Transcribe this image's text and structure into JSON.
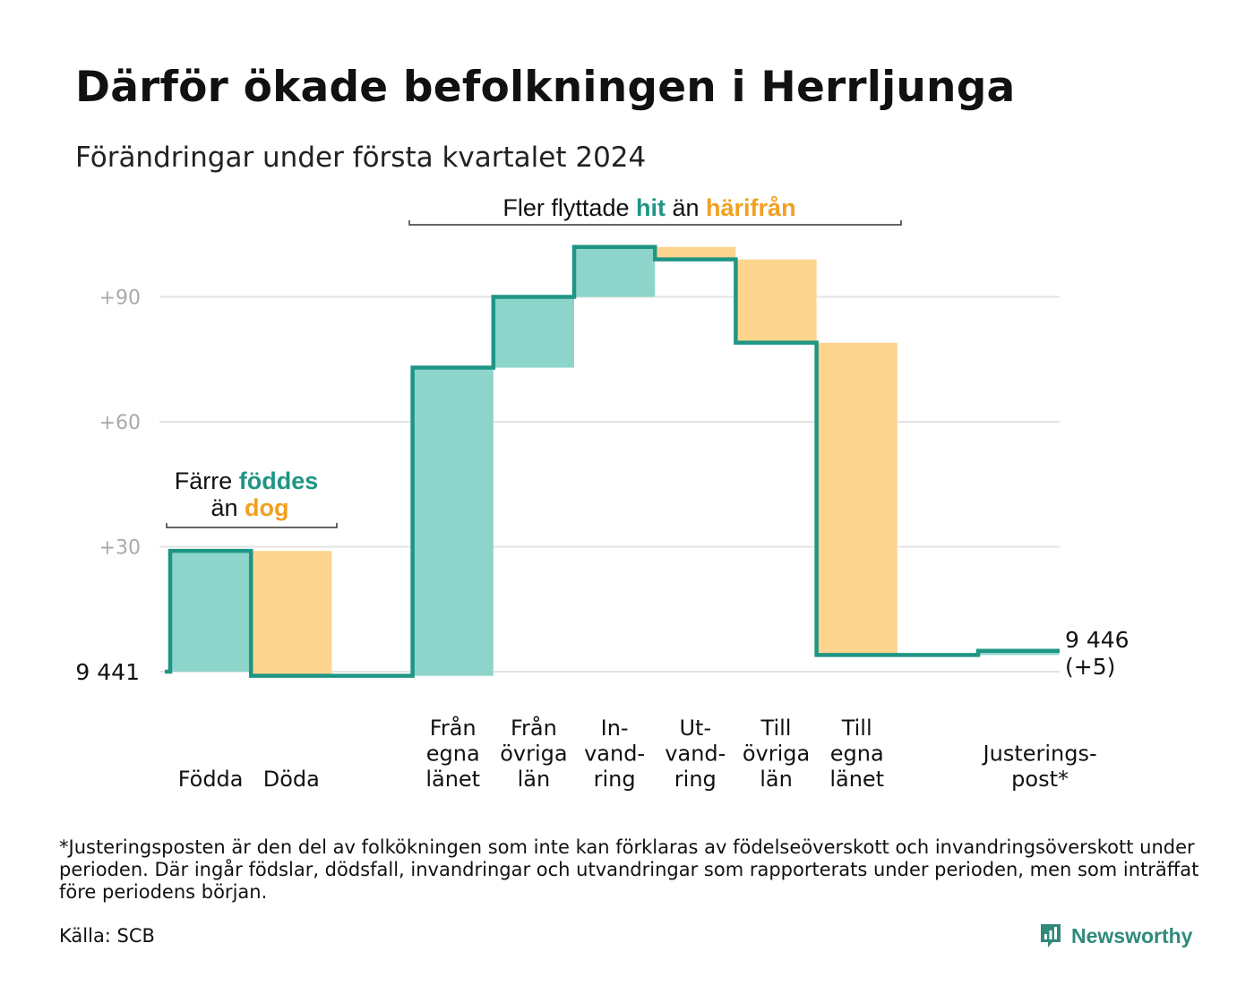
{
  "header": {
    "title": "Därför ökade befolkningen i Herrljunga",
    "subtitle": "Förändringar under första kvartalet 2024"
  },
  "colors": {
    "increase_fill": "#8dd5cb",
    "decrease_fill": "#fdd58f",
    "line": "#1f9585",
    "accent_teal": "#1f9585",
    "accent_orange": "#f0a020",
    "grid": "#e3e3e3",
    "tick_text": "#aaaaaa"
  },
  "chart_data": {
    "type": "waterfall",
    "start_label": "9  441",
    "end_value_label": "9 446",
    "end_change_label": "(+5)",
    "y_ticks": [
      {
        "value": 30,
        "label": "+30"
      },
      {
        "value": 60,
        "label": "+60"
      },
      {
        "value": 90,
        "label": "+90"
      }
    ],
    "ylim": [
      -5,
      105
    ],
    "steps": [
      {
        "label": [
          "Födda"
        ],
        "change": 29,
        "kind": "increase"
      },
      {
        "label": [
          "Döda"
        ],
        "change": -30,
        "kind": "decrease"
      },
      {
        "label": [],
        "change": 0,
        "kind": "gap"
      },
      {
        "label": [
          "Från",
          "egna",
          "länet"
        ],
        "change": 74,
        "kind": "increase"
      },
      {
        "label": [
          "Från",
          "övriga",
          "län"
        ],
        "change": 17,
        "kind": "increase"
      },
      {
        "label": [
          "In-",
          "vand-",
          "ring"
        ],
        "change": 12,
        "kind": "increase"
      },
      {
        "label": [
          "Ut-",
          "vand-",
          "ring"
        ],
        "change": -3,
        "kind": "decrease"
      },
      {
        "label": [
          "Till",
          "övriga",
          "län"
        ],
        "change": -20,
        "kind": "decrease"
      },
      {
        "label": [
          "Till",
          "egna",
          "länet"
        ],
        "change": -75,
        "kind": "decrease"
      },
      {
        "label": [],
        "change": 0,
        "kind": "gap"
      },
      {
        "label": [
          "Justerings-",
          "post*"
        ],
        "change": 1,
        "kind": "increase"
      }
    ],
    "annotations": [
      {
        "line1_parts": [
          "Färre ",
          "föddes"
        ],
        "line2_parts": [
          "än ",
          "dog"
        ]
      },
      {
        "parts": [
          "Fler flyttade ",
          "hit",
          " än ",
          "härifrån"
        ]
      }
    ]
  },
  "footer": {
    "footnote": "*Justeringsposten är den del av folkökningen som inte kan förklaras av födelseöverskott och invandringsöverskott under perioden. Där ingår födslar, dödsfall, invandringar och utvandringar som rapporterats under perioden, men som inträffat före periodens början.",
    "source": "Källa: SCB",
    "logo_text": "Newsworthy",
    "logo_icon": "bar-chart-speech-bubble-icon"
  }
}
